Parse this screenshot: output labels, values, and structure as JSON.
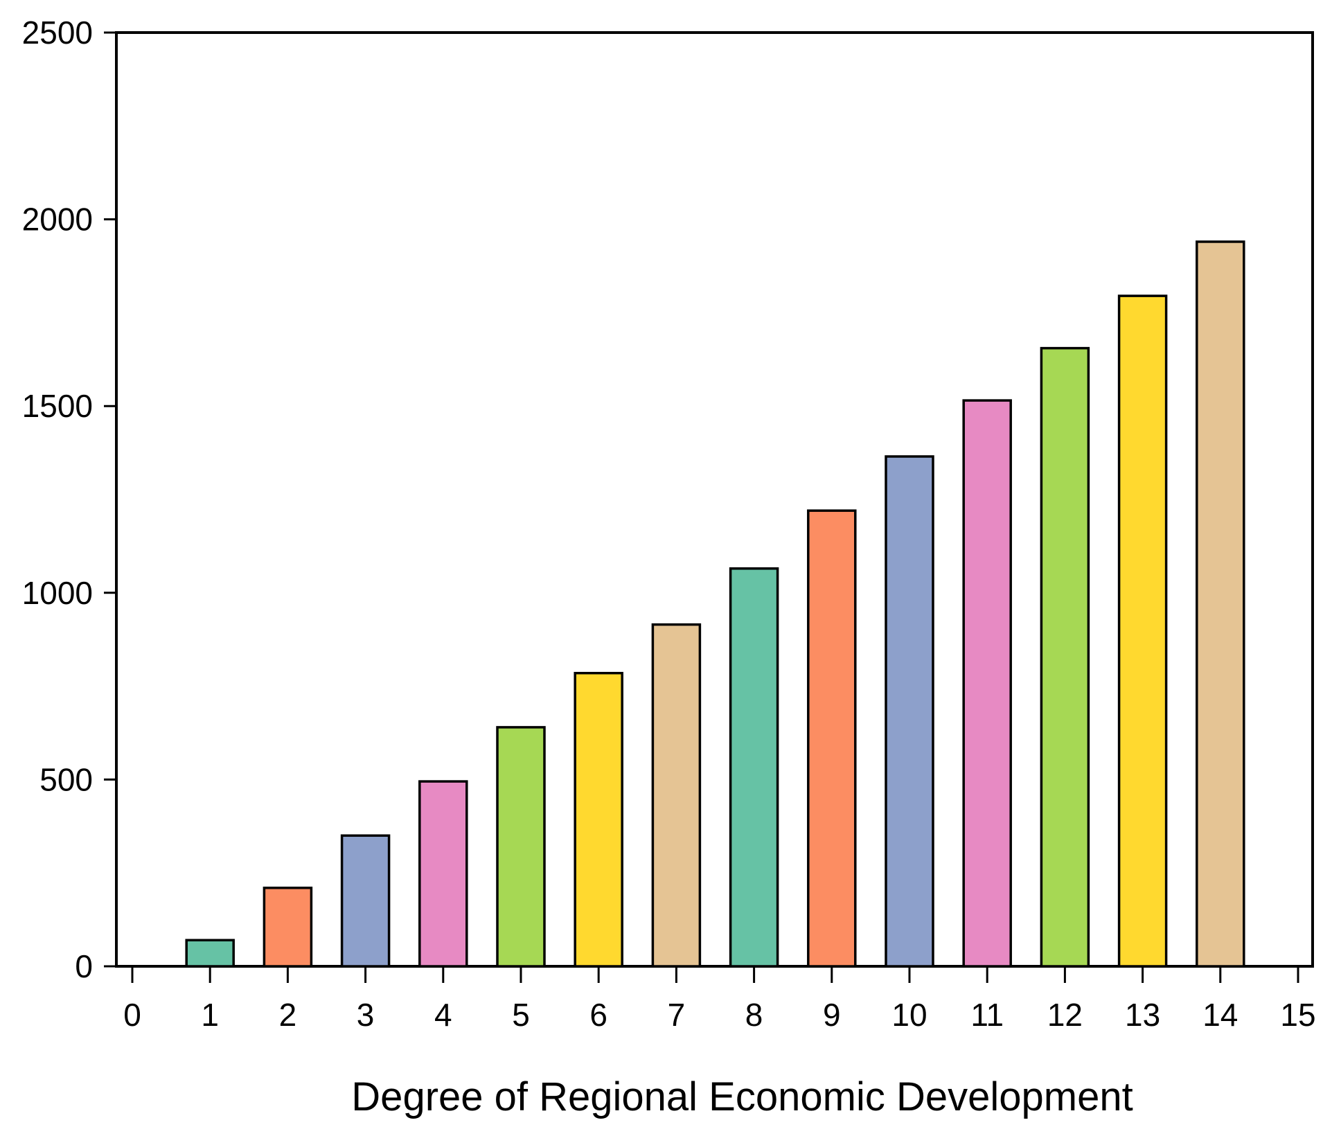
{
  "chart_data": {
    "type": "bar",
    "title": "",
    "xlabel": "Degree of Regional Economic Development",
    "ylabel": "",
    "x": [
      1,
      2,
      3,
      4,
      5,
      6,
      7,
      8,
      9,
      10,
      11,
      12,
      13,
      14
    ],
    "values": [
      70,
      210,
      350,
      495,
      640,
      785,
      915,
      1065,
      1220,
      1365,
      1515,
      1655,
      1795,
      1940
    ],
    "xlim": [
      0,
      15
    ],
    "ylim": [
      0,
      2500
    ],
    "xticks": [
      "0",
      "1",
      "2",
      "3",
      "4",
      "5",
      "6",
      "7",
      "8",
      "9",
      "10",
      "11",
      "12",
      "13",
      "14",
      "15"
    ],
    "yticks": [
      "0",
      "500",
      "1000",
      "1500",
      "2000",
      "2500"
    ],
    "grid": false,
    "legend": "none",
    "bar_colors": [
      "#66c2a5",
      "#fc8d62",
      "#8da0cb",
      "#e78ac3",
      "#a6d854",
      "#ffd92f",
      "#e5c494",
      "#66c2a5",
      "#fc8d62",
      "#8da0cb",
      "#e78ac3",
      "#a6d854",
      "#ffd92f",
      "#e5c494"
    ],
    "edge_color": "#000000",
    "background": "#ffffff"
  }
}
